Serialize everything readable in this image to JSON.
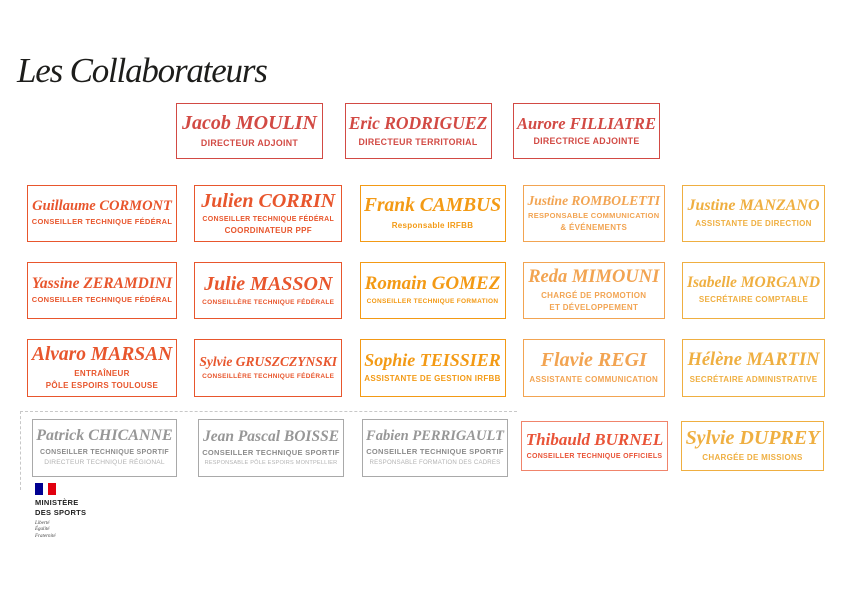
{
  "page": {
    "title": "Les Collaborateurs",
    "background": "#ffffff"
  },
  "palette": {
    "ink": "#1d1d1b",
    "red": "#d24a44",
    "vermilion": "#e8562d",
    "orange": "#f39a15",
    "lightorange": "#f2a452",
    "gold": "#efaf41",
    "salmon_text": "#e95438",
    "salmon_border": "#f0846b",
    "gray_name": "#979797",
    "gray_title": "#8c8c8c",
    "gray_sub": "#b3b3b3",
    "gray_border": "#a9a9a9",
    "dash": "#c8c8c8",
    "flag_blue": "#000091",
    "flag_red": "#e1000f"
  },
  "rows": [
    {
      "label": "direction",
      "boxes": [
        {
          "name": "Jacob MOULIN",
          "title_lines": [
            "DIRECTEUR ADJOINT"
          ],
          "color": "red"
        },
        {
          "name": "Eric RODRIGUEZ",
          "title_lines": [
            "DIRECTEUR TERRITORIAL"
          ],
          "color": "red"
        },
        {
          "name": "Aurore FILLIATRE",
          "title_lines": [
            "DIRECTRICE ADJOINTE"
          ],
          "color": "red"
        }
      ]
    },
    {
      "label": "staff-row-1",
      "boxes": [
        {
          "name": "Guillaume CORMONT",
          "title_lines": [
            "CONSEILLER TECHNIQUE FÉDÉRAL"
          ],
          "color": "vermilion"
        },
        {
          "name": "Julien CORRIN",
          "title_lines": [
            "CONSEILLER TECHNIQUE FÉDÉRAL",
            "COORDINATEUR PPF"
          ],
          "color": "vermilion"
        },
        {
          "name": "Frank CAMBUS",
          "title_lines": [
            "Responsable IRFBB"
          ],
          "color": "orange"
        },
        {
          "name": "Justine ROMBOLETTI",
          "title_lines": [
            "RESPONSABLE COMMUNICATION",
            "& ÉVÉNEMENTS"
          ],
          "color": "lightorange"
        },
        {
          "name": "Justine MANZANO",
          "title_lines": [
            "ASSISTANTE DE DIRECTION"
          ],
          "color": "gold"
        }
      ]
    },
    {
      "label": "staff-row-2",
      "boxes": [
        {
          "name": "Yassine ZERAMDINI",
          "title_lines": [
            "CONSEILLER TECHNIQUE FÉDÉRAL"
          ],
          "color": "vermilion"
        },
        {
          "name": "Julie MASSON",
          "title_lines": [
            "CONSEILLÈRE TECHNIQUE FÉDÉRALE"
          ],
          "color": "vermilion"
        },
        {
          "name": "Romain GOMEZ",
          "title_lines": [
            "CONSEILLER TECHNIQUE FORMATION"
          ],
          "color": "orange"
        },
        {
          "name": "Reda MIMOUNI",
          "title_lines": [
            "CHARGÉ DE PROMOTION",
            "ET DÉVELOPPEMENT"
          ],
          "color": "lightorange"
        },
        {
          "name": "Isabelle MORGAND",
          "title_lines": [
            "SECRÉTAIRE COMPTABLE"
          ],
          "color": "gold"
        }
      ]
    },
    {
      "label": "staff-row-3",
      "boxes": [
        {
          "name": "Alvaro MARSAN",
          "title_lines": [
            "ENTRAÎNEUR",
            "PÔLE ESPOIRS TOULOUSE"
          ],
          "color": "vermilion"
        },
        {
          "name": "Sylvie GRUSZCZYNSKI",
          "title_lines": [
            "CONSEILLÈRE TECHNIQUE FÉDÉRALE"
          ],
          "color": "vermilion"
        },
        {
          "name": "Sophie TEISSIER",
          "title_lines": [
            "ASSISTANTE DE GESTION IRFBB"
          ],
          "color": "orange"
        },
        {
          "name": "Flavie REGI",
          "title_lines": [
            "ASSISTANTE COMMUNICATION"
          ],
          "color": "lightorange"
        },
        {
          "name": "Hélène MARTIN",
          "title_lines": [
            "SECRÉTAIRE ADMINISTRATIVE"
          ],
          "color": "gold"
        }
      ]
    },
    {
      "label": "staff-row-4",
      "boxes": [
        {
          "name": "Patrick CHICANNE",
          "title_lines": [
            "CONSEILLER TECHNIQUE SPORTIF"
          ],
          "subtitle": "DIRECTEUR TECHNIQUE RÉGIONAL",
          "color": "gray"
        },
        {
          "name": "Jean Pascal BOISSE",
          "title_lines": [
            "CONSEILLER TECHNIQUE SPORTIF"
          ],
          "subtitle": "RESPONSABLE PÔLE ESPOIRS MONTPELLIER",
          "color": "gray"
        },
        {
          "name": "Fabien PERRIGAULT",
          "title_lines": [
            "CONSEILLER TECHNIQUE SPORTIF"
          ],
          "subtitle": "RESPONSABLE FORMATION DES CADRES",
          "color": "gray"
        },
        {
          "name": "Thibauld BURNEL",
          "title_lines": [
            "CONSEILLER TECHNIQUE OFFICIELS"
          ],
          "color": "salmon"
        },
        {
          "name": "Sylvie DUPREY",
          "title_lines": [
            "CHARGÉE DE MISSIONS"
          ],
          "color": "gold"
        }
      ]
    }
  ],
  "logo": {
    "name_lines": [
      "MINISTÈRE",
      "DES SPORTS"
    ],
    "motto": [
      "Liberté",
      "Égalité",
      "Fraternité"
    ]
  }
}
